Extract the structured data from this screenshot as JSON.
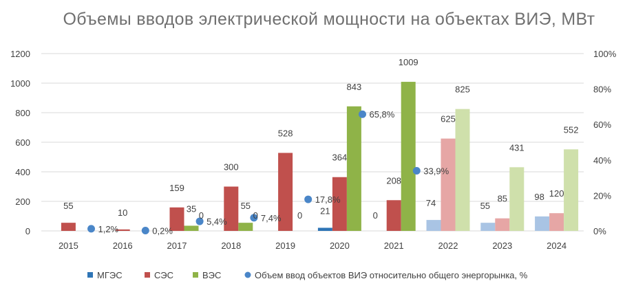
{
  "chart_data": {
    "type": "bar",
    "title": "Объемы вводов электрической мощности на объектах ВИЭ, МВт",
    "categories": [
      "2015",
      "2016",
      "2017",
      "2018",
      "2019",
      "2020",
      "2021",
      "2022",
      "2023",
      "2024"
    ],
    "ylim": [
      0,
      1200
    ],
    "y_ticks": [
      "0",
      "200",
      "400",
      "600",
      "800",
      "1000",
      "1200"
    ],
    "y2lim": [
      0,
      100
    ],
    "y2_ticks": [
      "0%",
      "20%",
      "40%",
      "60%",
      "80%",
      "100%"
    ],
    "grid": true,
    "legend_position": "bottom",
    "series": [
      {
        "name": "МГЭС",
        "color": "#2e75b6",
        "faded_color": "#a9c4e4",
        "values": [
          null,
          null,
          null,
          null,
          null,
          21,
          null,
          74,
          55,
          98
        ],
        "labels": [
          "",
          "",
          "",
          "",
          "",
          "21",
          "",
          "74",
          "55",
          "98"
        ]
      },
      {
        "name": "СЭС",
        "color": "#c0504d",
        "faded_color": "#e6a6a5",
        "values": [
          55,
          10,
          159,
          300,
          528,
          364,
          208,
          625,
          85,
          120
        ],
        "labels": [
          "55",
          "10",
          "159",
          "300",
          "528",
          "364",
          "208",
          "625",
          "85",
          "120"
        ]
      },
      {
        "name": "ВЭС",
        "color": "#8fb348",
        "faded_color": "#cfe0ab",
        "values": [
          null,
          null,
          35,
          55,
          0,
          843,
          1009,
          825,
          431,
          552
        ],
        "labels": [
          "",
          "",
          "35",
          "55",
          "0",
          "843",
          "1009",
          "825",
          "431",
          "552"
        ]
      }
    ],
    "faded_from_category": "2022",
    "zero_labels": {
      "2017": "0",
      "2018": "0",
      "2021": "0"
    },
    "dot_series": {
      "name": "Объем ввод объектов ВИЭ относительно общего энергорынка, %",
      "color": "#4a86c8",
      "values": [
        1.2,
        0.2,
        5.4,
        7.4,
        17.8,
        65.8,
        33.9,
        null,
        null,
        null
      ],
      "labels": [
        "1,2%",
        "0,2%",
        "5,4%",
        "7,4%",
        "17,8%",
        "65,8%",
        "33,9%",
        "",
        "",
        ""
      ]
    },
    "colors": {
      "title": "#707070",
      "axis_text": "#404040",
      "label_text": "#404040",
      "grid": "#d9d9d9"
    }
  }
}
